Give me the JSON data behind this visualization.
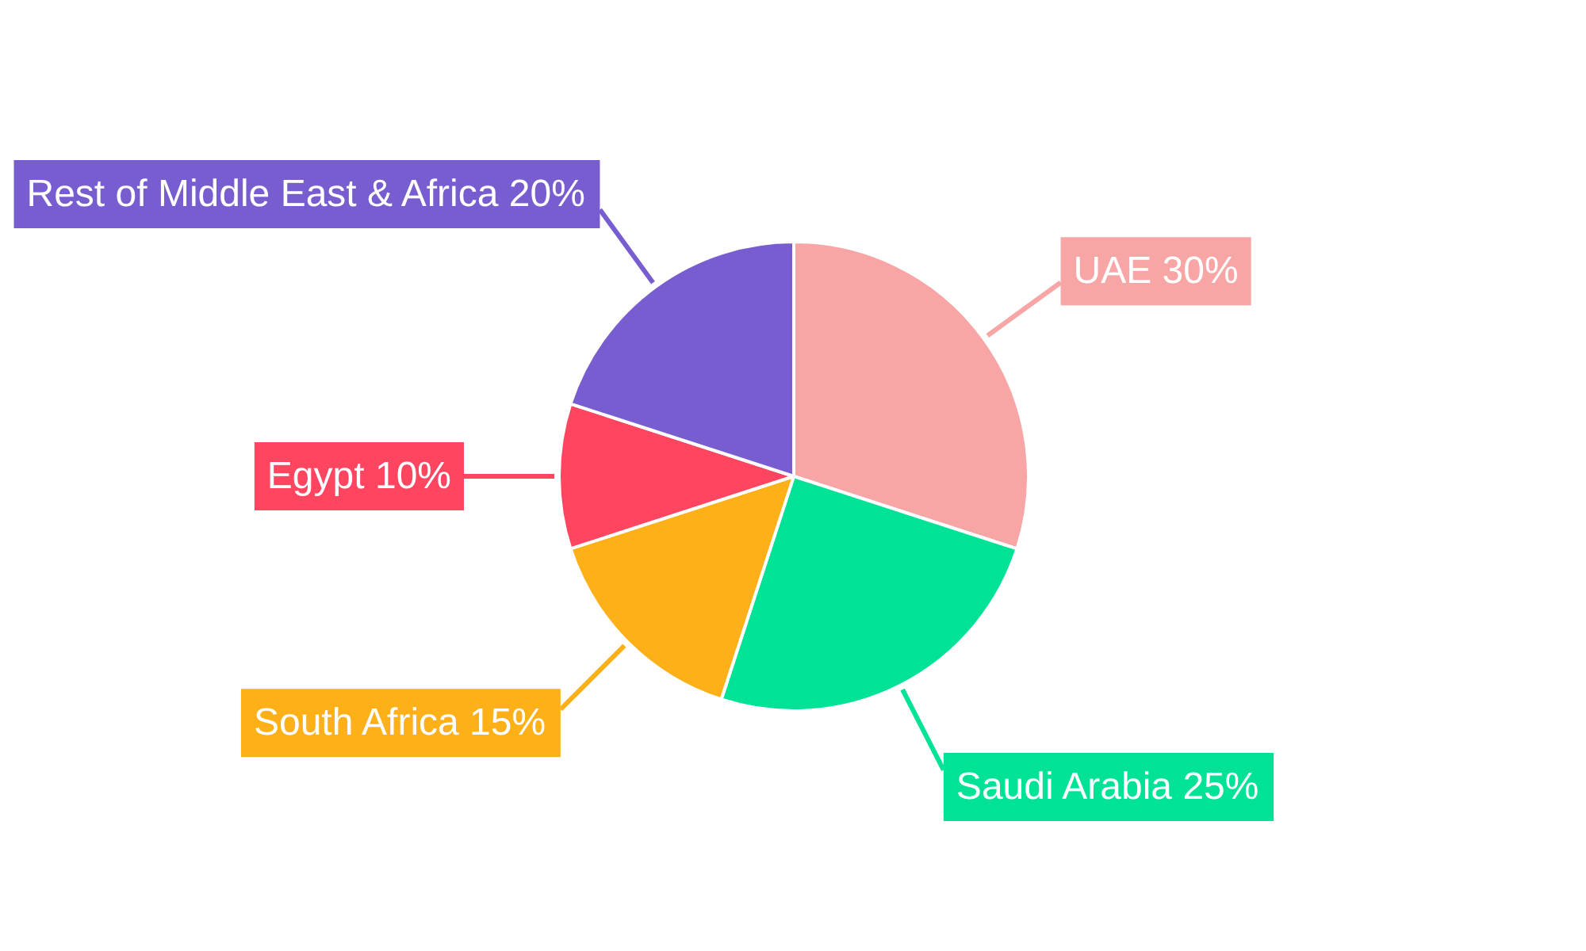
{
  "chart_data": {
    "type": "pie",
    "categories": [
      "UAE",
      "Saudi Arabia",
      "South Africa",
      "Egypt",
      "Rest of Middle East & Africa"
    ],
    "values": [
      30,
      25,
      15,
      10,
      20
    ],
    "colors": [
      "#f8a5a6",
      "#00e396",
      "#feb019",
      "#ff4560",
      "#775dd0"
    ],
    "value_labels": [
      "30%",
      "25%",
      "15%",
      "10%",
      "20%"
    ]
  }
}
